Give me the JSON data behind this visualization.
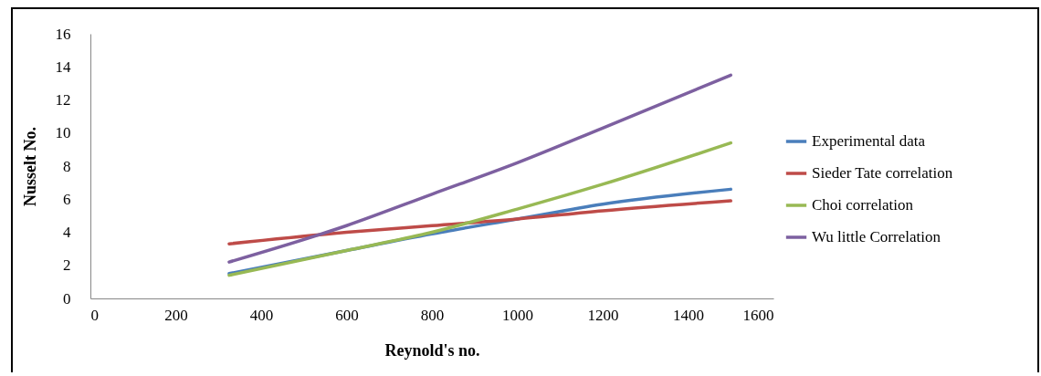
{
  "chart_data": {
    "type": "line",
    "xlabel": "Reynold's no.",
    "ylabel": "Nusselt No.",
    "xlim": [
      0,
      1600
    ],
    "xticks": [
      0,
      200,
      400,
      600,
      800,
      1000,
      1200,
      1400,
      1600
    ],
    "ylim": [
      0,
      16
    ],
    "yticks": [
      0,
      2,
      4,
      6,
      8,
      10,
      12,
      14,
      16
    ],
    "x": [
      325,
      600,
      800,
      1000,
      1200,
      1500
    ],
    "series": [
      {
        "name": "Experimental  data",
        "color": "#4a7ebb",
        "values": [
          1.5,
          2.9,
          3.9,
          4.8,
          5.7,
          6.6
        ]
      },
      {
        "name": "Sieder Tate correlation",
        "color": "#be4b48",
        "values": [
          3.3,
          4.0,
          4.4,
          4.8,
          5.3,
          5.9
        ]
      },
      {
        "name": "Choi correlation",
        "color": "#98b954",
        "values": [
          1.4,
          2.9,
          4.0,
          5.4,
          6.9,
          9.4
        ]
      },
      {
        "name": "Wu little  Correlation",
        "color": "#7d60a0",
        "values": [
          2.2,
          4.4,
          6.3,
          8.2,
          10.3,
          13.5
        ]
      }
    ],
    "grid": false,
    "legend": "right",
    "marker": "none",
    "line_style": "solid"
  }
}
